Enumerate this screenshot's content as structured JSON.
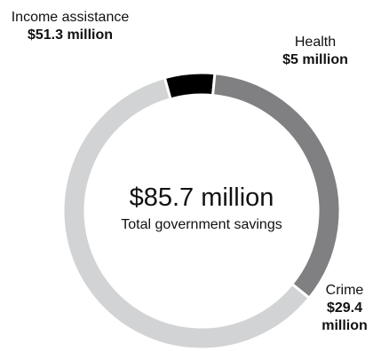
{
  "chart_data": {
    "type": "pie",
    "variant": "donut",
    "center_value": "$85.7 million",
    "center_caption": "Total government savings",
    "slices": [
      {
        "label": "Health",
        "value": 5,
        "value_text": "$5 million",
        "color": "#000000"
      },
      {
        "label": "Crime",
        "value": 29.4,
        "value_text": "$29.4 million",
        "color": "#808083"
      },
      {
        "label": "Income assistance",
        "value": 51.3,
        "value_text": "$51.3 million",
        "color": "#d2d3d4"
      }
    ],
    "slice_separator_color": "#ffffff"
  }
}
